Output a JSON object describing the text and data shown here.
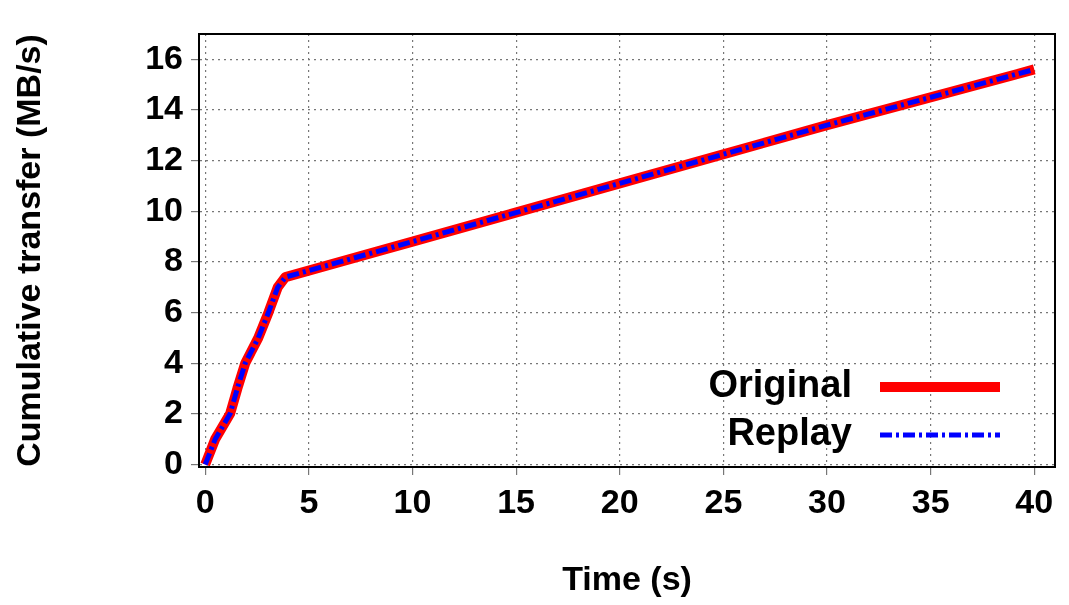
{
  "chart_data": {
    "type": "line",
    "xlabel": "Time (s)",
    "ylabel": "Cumulative transfer (MB/s)",
    "xlim": [
      -0.3,
      41
    ],
    "ylim": [
      -0.1,
      17
    ],
    "xticks": [
      0,
      5,
      10,
      15,
      20,
      25,
      30,
      35,
      40
    ],
    "yticks": [
      0,
      2,
      4,
      6,
      8,
      10,
      12,
      14,
      16
    ],
    "grid": true,
    "legend": "bottom right",
    "marker": "none",
    "series": [
      {
        "name": "Original",
        "color": "#ff0000",
        "line_style": "solid",
        "x": [
          0,
          0.48,
          1.2,
          1.55,
          1.93,
          2.56,
          3.05,
          3.5,
          3.87,
          10,
          20,
          30,
          40
        ],
        "values": [
          0,
          1,
          2,
          3,
          4,
          5,
          6,
          7,
          7.4,
          8.8,
          11.1,
          13.4,
          15.6
        ]
      },
      {
        "name": "Replay",
        "color": "#0000ff",
        "line_style": "dashdot",
        "x": [
          0,
          0.48,
          1.2,
          1.55,
          1.93,
          2.56,
          3.05,
          3.5,
          3.87,
          10,
          20,
          30,
          40
        ],
        "values": [
          0,
          1,
          2,
          3,
          4,
          5,
          6,
          7,
          7.4,
          8.8,
          11.1,
          13.4,
          15.6
        ]
      }
    ]
  }
}
